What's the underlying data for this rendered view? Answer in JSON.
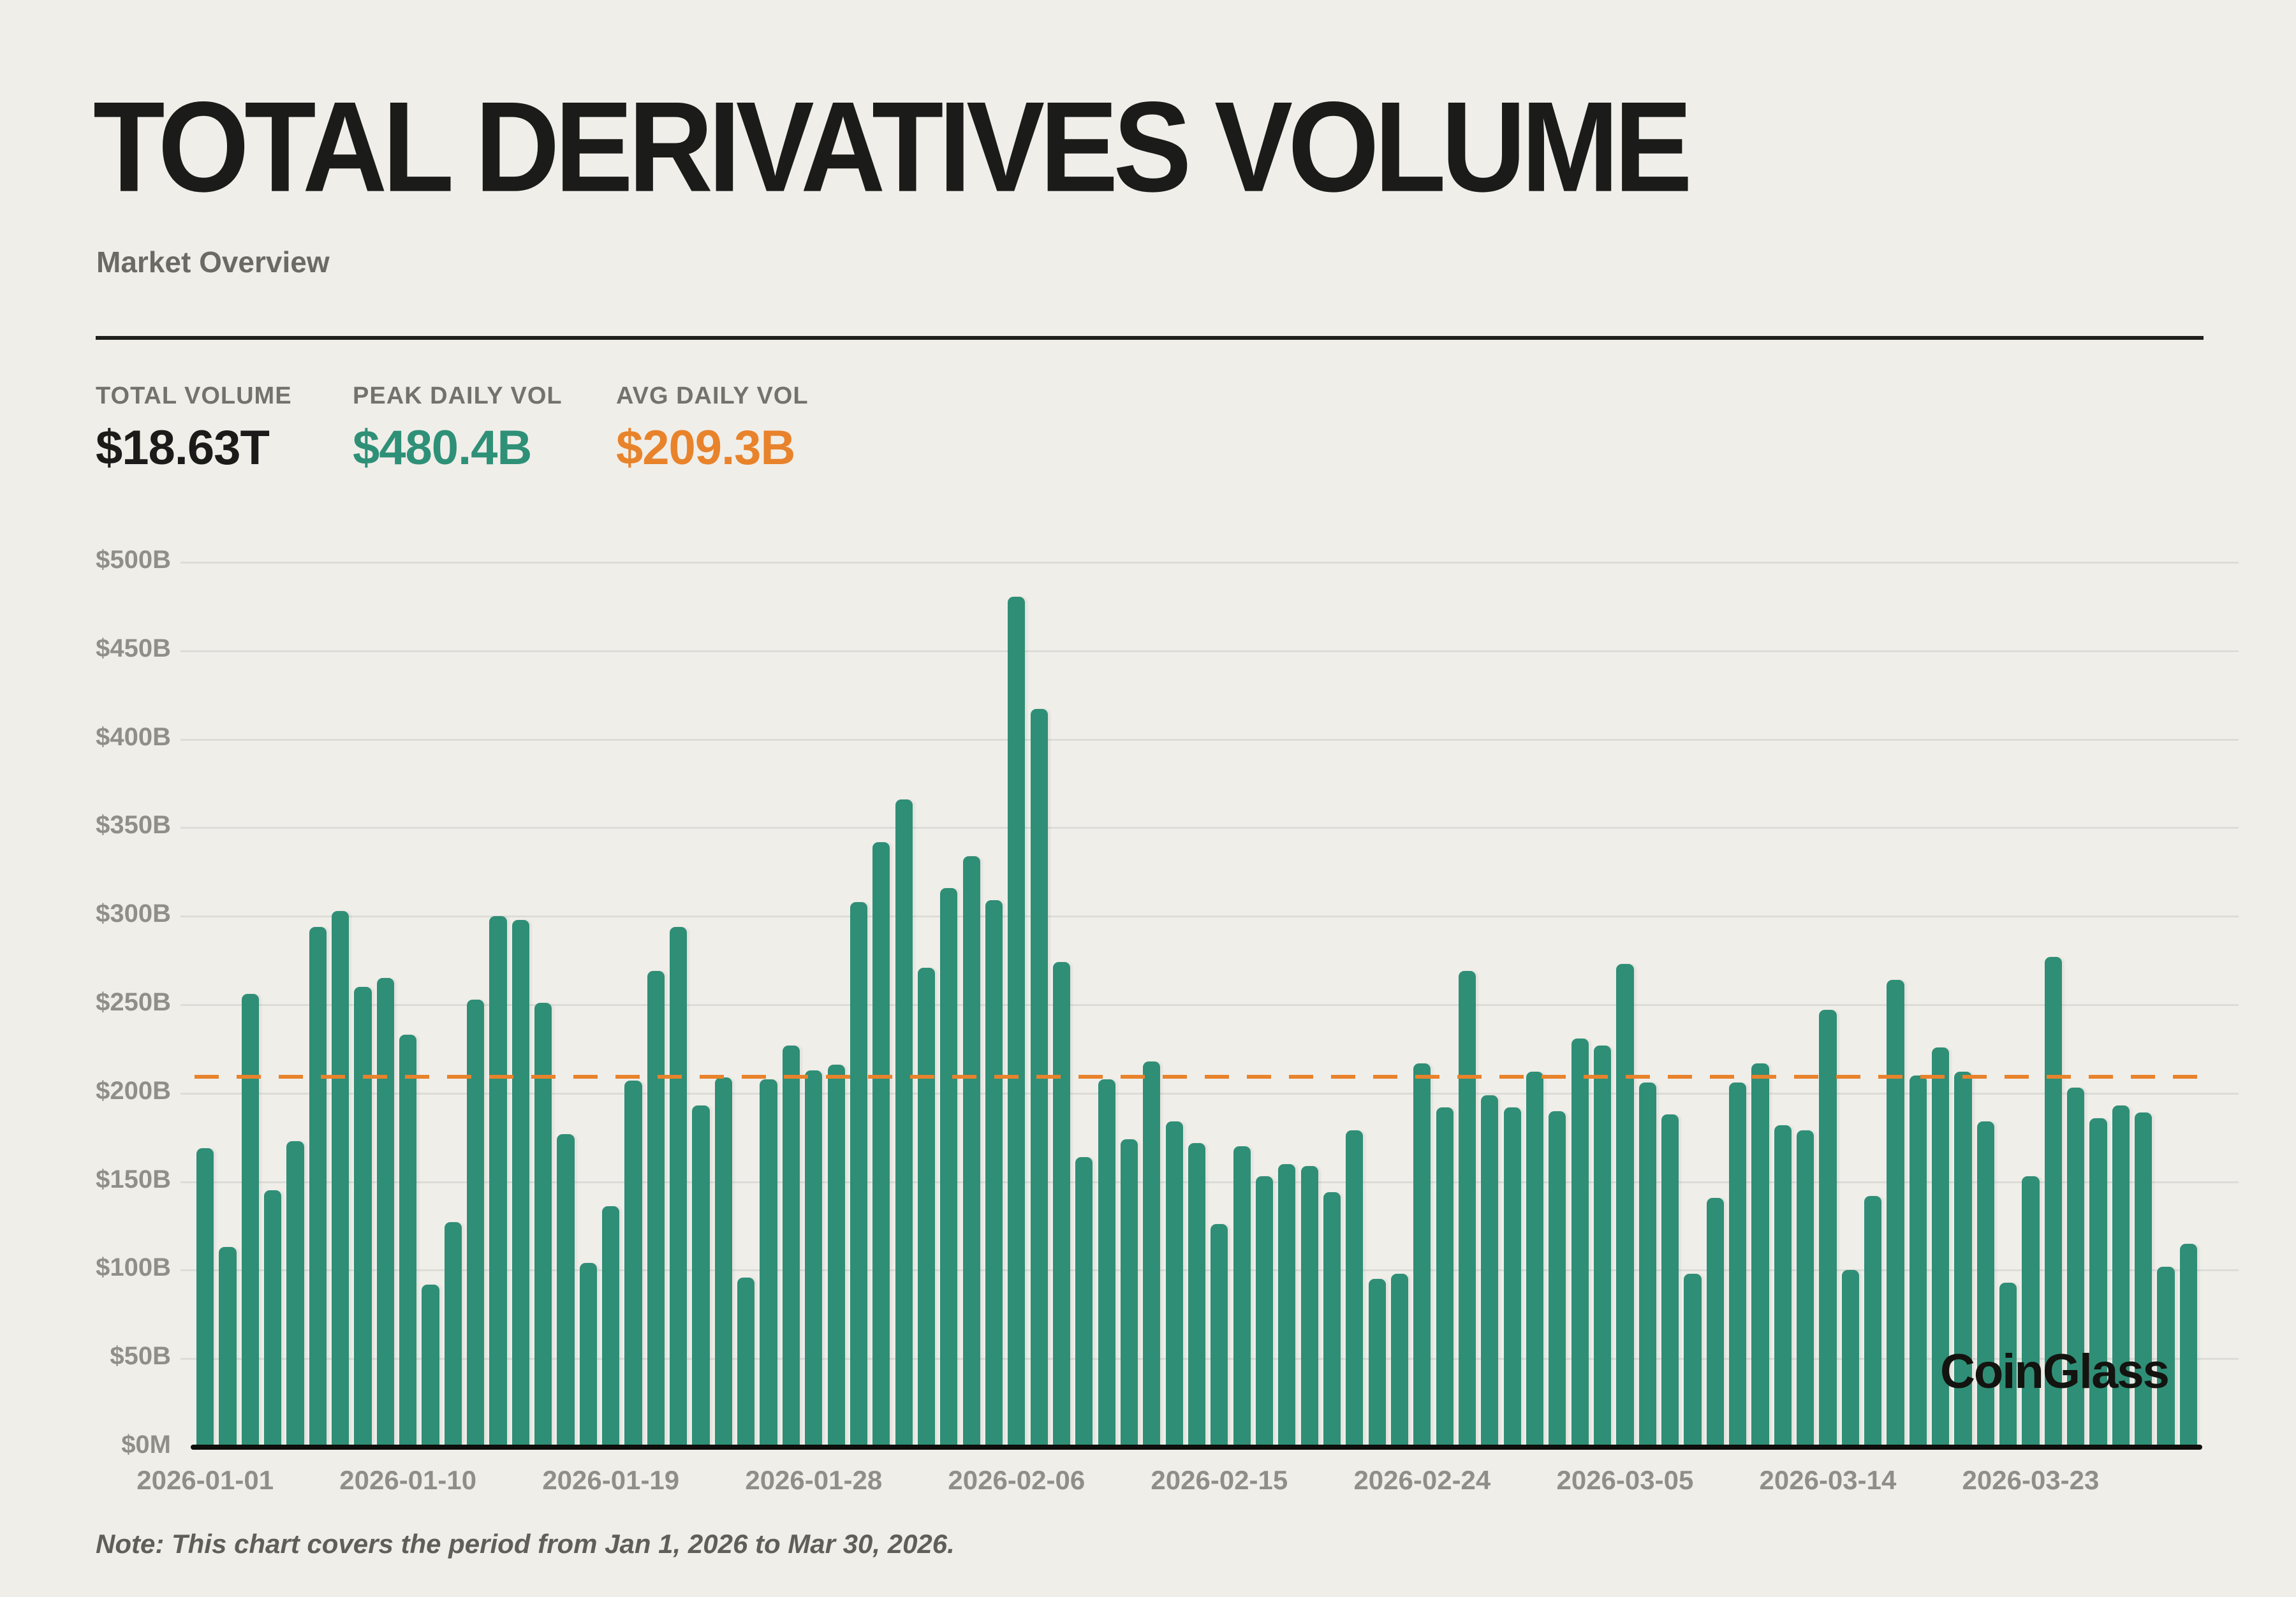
{
  "header": {
    "title": "TOTAL DERIVATIVES VOLUME",
    "subtitle": "Market Overview"
  },
  "stats": {
    "total": {
      "label": "TOTAL VOLUME",
      "value": "$18.63T"
    },
    "peak": {
      "label": "PEAK DAILY VOL",
      "value": "$480.4B"
    },
    "avg": {
      "label": "AVG DAILY VOL",
      "value": "$209.3B"
    }
  },
  "chart_data": {
    "type": "bar",
    "title": "Total derivatives volume, daily",
    "unit": "USD billions",
    "start_date": "2026-01-01",
    "end_date": "2026-03-30",
    "ylim": [
      0,
      500
    ],
    "grid": true,
    "values": [
      169,
      113,
      256,
      145,
      173,
      294,
      303,
      260,
      265,
      233,
      92,
      127,
      253,
      300,
      298,
      251,
      177,
      104,
      136,
      207,
      269,
      294,
      193,
      209,
      96,
      208,
      227,
      213,
      216,
      308,
      342,
      366,
      271,
      316,
      334,
      309,
      480.4,
      417,
      274,
      164,
      208,
      174,
      218,
      184,
      172,
      126,
      170,
      153,
      160,
      159,
      144,
      179,
      95,
      98,
      217,
      192,
      269,
      199,
      192,
      212,
      190,
      231,
      227,
      273,
      206,
      188,
      98,
      141,
      206,
      217,
      182,
      179,
      247,
      100,
      142,
      264,
      210,
      226,
      212,
      184,
      93,
      153,
      277,
      203,
      186,
      193,
      189,
      102,
      115
    ],
    "x_ticks": [
      {
        "index": 0,
        "label": "2026-01-01"
      },
      {
        "index": 9,
        "label": "2026-01-10"
      },
      {
        "index": 18,
        "label": "2026-01-19"
      },
      {
        "index": 27,
        "label": "2026-01-28"
      },
      {
        "index": 36,
        "label": "2026-02-06"
      },
      {
        "index": 45,
        "label": "2026-02-15"
      },
      {
        "index": 54,
        "label": "2026-02-24"
      },
      {
        "index": 63,
        "label": "2026-03-05"
      },
      {
        "index": 72,
        "label": "2026-03-14"
      },
      {
        "index": 81,
        "label": "2026-03-23"
      }
    ],
    "y_tick_labels": [
      "$0M",
      "$50B",
      "$100B",
      "$150B",
      "$200B",
      "$250B",
      "$300B",
      "$350B",
      "$400B",
      "$450B",
      "$500B"
    ],
    "avg_line_value": 209.3,
    "legend": "none",
    "colors": {
      "bar": "#2f8e76",
      "avg_line": "#e8822b",
      "background": "#f0eee9",
      "gridline": "#dcdcd8"
    }
  },
  "logo": {
    "text": "CoinGlass"
  },
  "footer": {
    "note": "Note: This chart covers the period from Jan 1, 2026 to Mar 30, 2026."
  }
}
